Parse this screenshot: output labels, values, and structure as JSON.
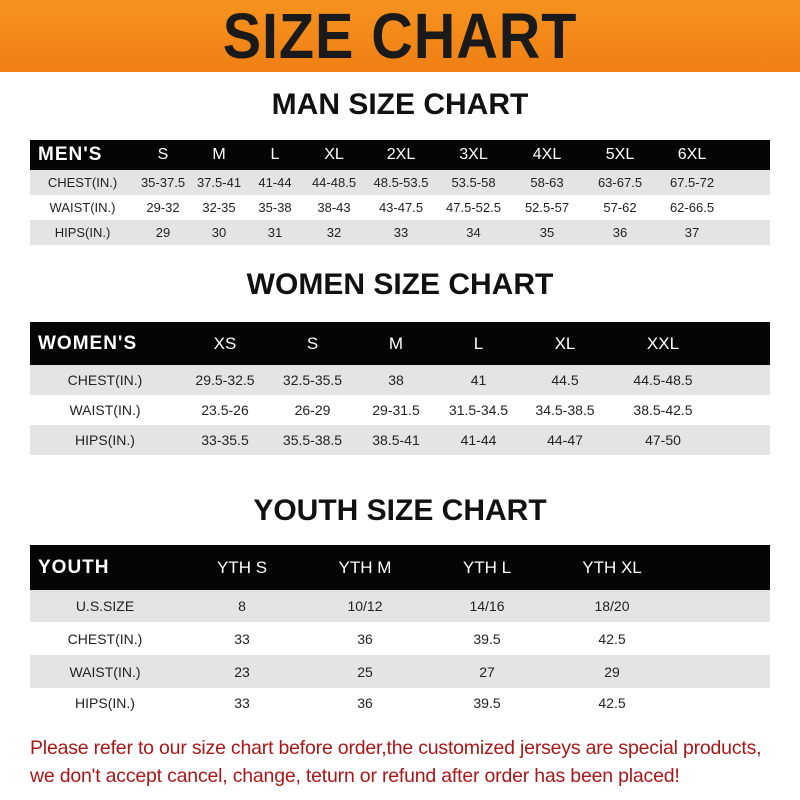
{
  "title": "SIZE CHART",
  "men": {
    "title": "MAN SIZE CHART",
    "header": [
      "MEN'S",
      "S",
      "M",
      "L",
      "XL",
      "2XL",
      "3XL",
      "4XL",
      "5XL",
      "6XL"
    ],
    "rows": [
      [
        "CHEST(IN.)",
        "35-37.5",
        "37.5-41",
        "41-44",
        "44-48.5",
        "48.5-53.5",
        "53.5-58",
        "58-63",
        "63-67.5",
        "67.5-72"
      ],
      [
        "WAIST(IN.)",
        "29-32",
        "32-35",
        "35-38",
        "38-43",
        "43-47.5",
        "47.5-52.5",
        "52.5-57",
        "57-62",
        "62-66.5"
      ],
      [
        "HIPS(IN.)",
        "29",
        "30",
        "31",
        "32",
        "33",
        "34",
        "35",
        "36",
        "37"
      ]
    ]
  },
  "women": {
    "title": "WOMEN SIZE CHART",
    "header": [
      "WOMEN'S",
      "XS",
      "S",
      "M",
      "L",
      "XL",
      "XXL"
    ],
    "rows": [
      [
        "CHEST(IN.)",
        "29.5-32.5",
        "32.5-35.5",
        "38",
        "41",
        "44.5",
        "44.5-48.5"
      ],
      [
        "WAIST(IN.)",
        "23.5-26",
        "26-29",
        "29-31.5",
        "31.5-34.5",
        "34.5-38.5",
        "38.5-42.5"
      ],
      [
        "HIPS(IN.)",
        "33-35.5",
        "35.5-38.5",
        "38.5-41",
        "41-44",
        "44-47",
        "47-50"
      ]
    ]
  },
  "youth": {
    "title": "YOUTH SIZE CHART",
    "header": [
      "YOUTH",
      "YTH S",
      "YTH M",
      "YTH L",
      "YTH XL"
    ],
    "rows": [
      [
        "U.S.SIZE",
        "8",
        "10/12",
        "14/16",
        "18/20"
      ],
      [
        "CHEST(IN.)",
        "33",
        "36",
        "39.5",
        "42.5"
      ],
      [
        "WAIST(IN.)",
        "23",
        "25",
        "27",
        "29"
      ],
      [
        "HIPS(IN.)",
        "33",
        "36",
        "39.5",
        "42.5"
      ]
    ]
  },
  "footer": {
    "line1": "Please refer to our size chart before order,the customized jerseys are special products,",
    "line2": "we don't accept cancel, change, teturn or refund after order has been placed!"
  },
  "colors": {
    "banner": "#f7931e",
    "header": "#050505",
    "alt_row": "#e4e4e4",
    "footer_text": "#a81818"
  }
}
